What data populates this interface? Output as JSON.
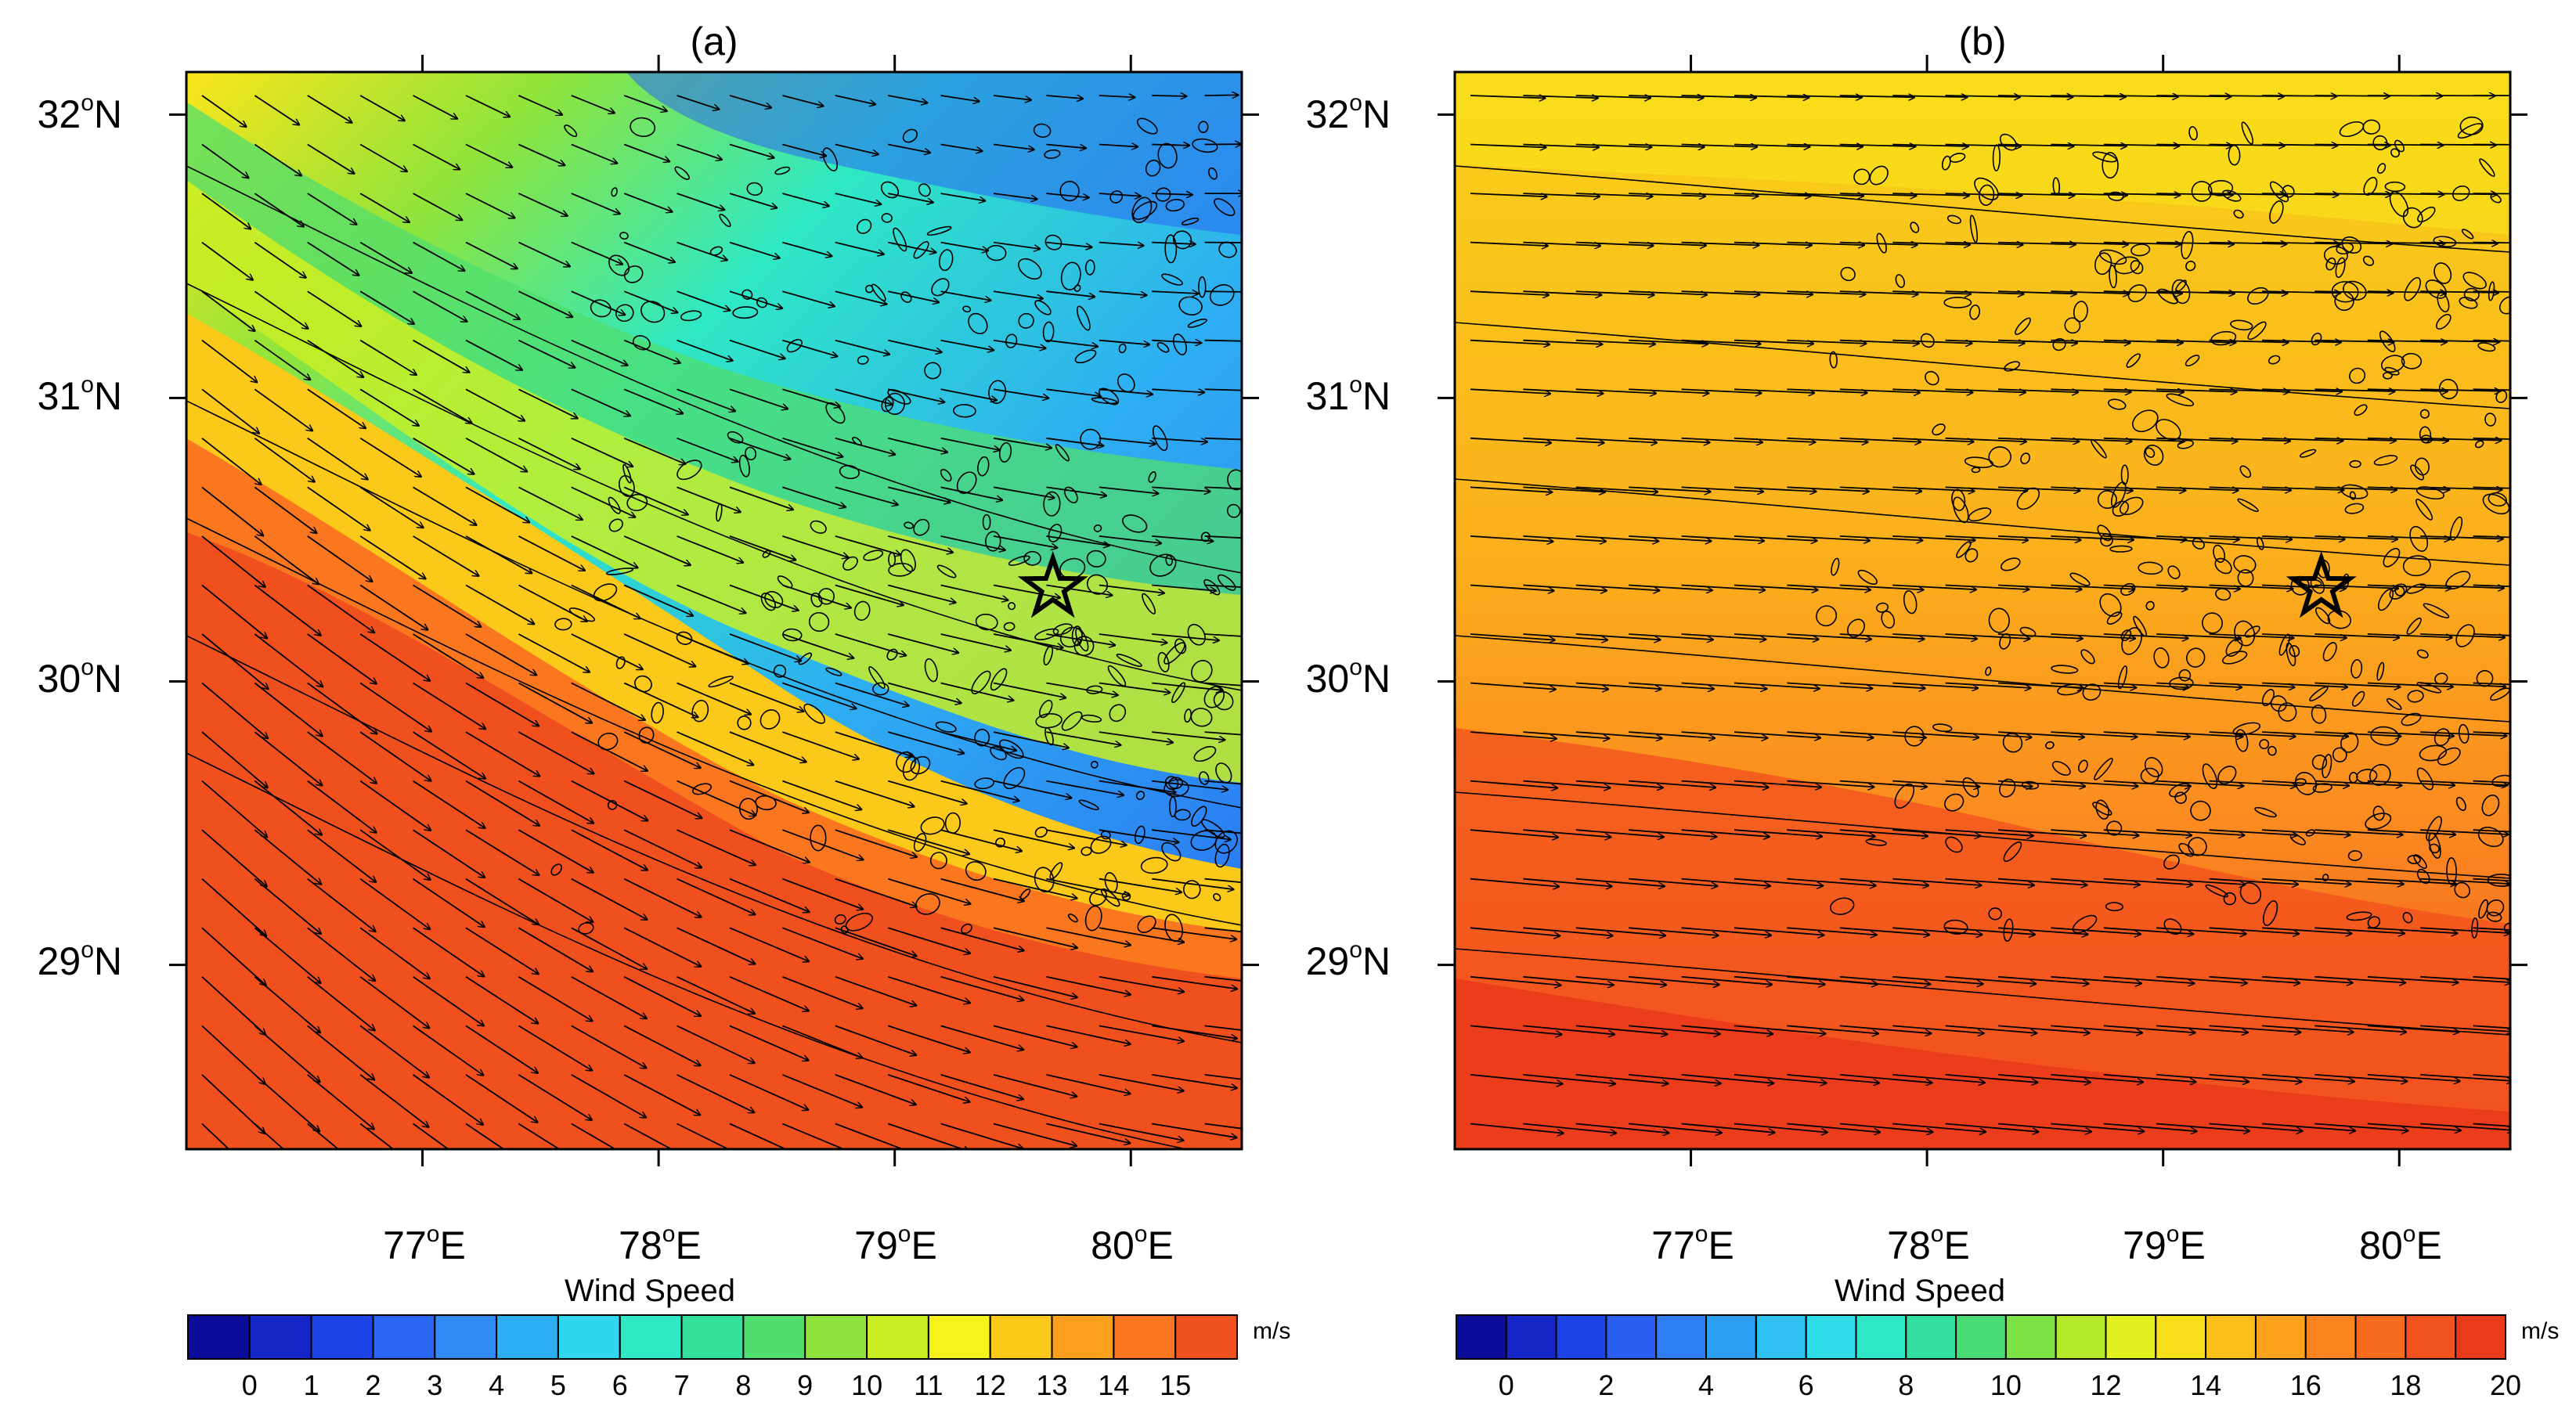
{
  "panels": [
    {
      "label": "(a)",
      "lat_ticks": [
        {
          "value": 32,
          "deg": "32",
          "hemi": "N"
        },
        {
          "value": 31,
          "deg": "31",
          "hemi": "N"
        },
        {
          "value": 30,
          "deg": "30",
          "hemi": "N"
        },
        {
          "value": 29,
          "deg": "29",
          "hemi": "N"
        }
      ],
      "lon_ticks": [
        {
          "value": 77,
          "deg": "77",
          "hemi": "E"
        },
        {
          "value": 78,
          "deg": "78",
          "hemi": "E"
        },
        {
          "value": 79,
          "deg": "79",
          "hemi": "E"
        },
        {
          "value": 80,
          "deg": "80",
          "hemi": "E"
        }
      ],
      "lon_range": [
        76.0,
        80.47
      ],
      "lat_range": [
        28.35,
        32.15
      ],
      "marker": {
        "name": "star",
        "lon": 79.67,
        "lat": 30.33
      },
      "wind_pattern": "curved north-westerly flow turning westerly, strongest in the south-west",
      "colorbar": {
        "title": "Wind Speed",
        "units": "m/s",
        "colors": [
          "#0c0c9a",
          "#1426c8",
          "#1d45e6",
          "#2a66f2",
          "#2f8af5",
          "#2eaef2",
          "#2fd6ee",
          "#2fe8c4",
          "#34e09a",
          "#50de6e",
          "#8ee43c",
          "#c8ee26",
          "#f7f21a",
          "#fbc91a",
          "#fc9f1c",
          "#fa7720",
          "#f04f1e"
        ],
        "labels": [
          "0",
          "1",
          "2",
          "3",
          "4",
          "5",
          "6",
          "7",
          "8",
          "9",
          "10",
          "11",
          "12",
          "13",
          "14",
          "15"
        ]
      }
    },
    {
      "label": "(b)",
      "lat_ticks": [
        {
          "value": 32,
          "deg": "32",
          "hemi": "N"
        },
        {
          "value": 31,
          "deg": "31",
          "hemi": "N"
        },
        {
          "value": 30,
          "deg": "30",
          "hemi": "N"
        },
        {
          "value": 29,
          "deg": "29",
          "hemi": "N"
        }
      ],
      "lon_ticks": [
        {
          "value": 77,
          "deg": "77",
          "hemi": "E"
        },
        {
          "value": 78,
          "deg": "78",
          "hemi": "E"
        },
        {
          "value": 79,
          "deg": "79",
          "hemi": "E"
        },
        {
          "value": 80,
          "deg": "80",
          "hemi": "E"
        }
      ],
      "lon_range": [
        76.0,
        80.47
      ],
      "lat_range": [
        28.35,
        32.15
      ],
      "marker": {
        "name": "star",
        "lon": 79.67,
        "lat": 30.33
      },
      "wind_pattern": "nearly uniform westerly flow",
      "colorbar": {
        "title": "Wind Speed",
        "units": "m/s",
        "colors": [
          "#0c0c9a",
          "#1426c8",
          "#1d45e6",
          "#2a5ef0",
          "#2f7ff4",
          "#2e9ef3",
          "#2ec0f0",
          "#2fdcea",
          "#2fe6c6",
          "#33e0a0",
          "#48dc74",
          "#7ee244",
          "#b2ea2a",
          "#e2f020",
          "#f8e01a",
          "#fbc11a",
          "#fca21c",
          "#fb8520",
          "#f86a20",
          "#f2521e",
          "#ea3a1c"
        ],
        "labels": [
          "0",
          "2",
          "4",
          "6",
          "8",
          "10",
          "12",
          "14",
          "16",
          "18",
          "20"
        ]
      }
    }
  ]
}
